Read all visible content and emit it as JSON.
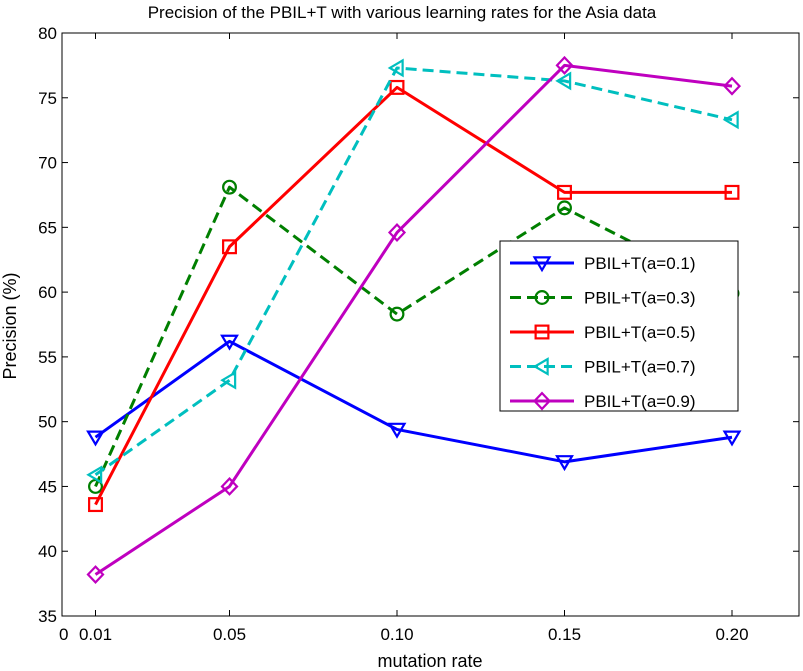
{
  "chart_data": {
    "type": "line",
    "title": "Precision of the PBIL+T with various learning rates for the Asia data",
    "xlabel": "mutation rate",
    "ylabel": "Precision (%)",
    "x_positions": [
      0.01,
      0.05,
      0.1,
      0.15,
      0.2
    ],
    "xlim": [
      0,
      0.22
    ],
    "xticks": [
      {
        "value": 0.0,
        "label": "0"
      },
      {
        "value": 0.01,
        "label": "0.01"
      },
      {
        "value": 0.05,
        "label": "0.05"
      },
      {
        "value": 0.1,
        "label": "0.10"
      },
      {
        "value": 0.15,
        "label": "0.15"
      },
      {
        "value": 0.2,
        "label": "0.20"
      }
    ],
    "ylim": [
      35,
      80
    ],
    "yticks": [
      35,
      40,
      45,
      50,
      55,
      60,
      65,
      70,
      75,
      80
    ],
    "grid": false,
    "legend_position": "center-right",
    "series": [
      {
        "name": "PBIL+T(a=0.1)",
        "color": "#0000ff",
        "dash": "solid",
        "marker": "triangle-down",
        "values": [
          48.8,
          56.2,
          49.4,
          46.9,
          48.8
        ]
      },
      {
        "name": "PBIL+T(a=0.3)",
        "color": "#007f00",
        "dash": "dashed",
        "marker": "circle",
        "values": [
          45.0,
          68.1,
          58.3,
          66.5,
          59.9
        ]
      },
      {
        "name": "PBIL+T(a=0.5)",
        "color": "#ff0000",
        "dash": "solid",
        "marker": "square",
        "values": [
          43.6,
          63.5,
          75.8,
          67.7,
          67.7
        ]
      },
      {
        "name": "PBIL+T(a=0.7)",
        "color": "#00bfbf",
        "dash": "dashed",
        "marker": "triangle-left",
        "values": [
          45.9,
          53.2,
          77.3,
          76.3,
          73.3
        ]
      },
      {
        "name": "PBIL+T(a=0.9)",
        "color": "#bf00bf",
        "dash": "solid",
        "marker": "diamond",
        "values": [
          38.2,
          45.0,
          64.6,
          77.5,
          75.9
        ]
      }
    ]
  }
}
